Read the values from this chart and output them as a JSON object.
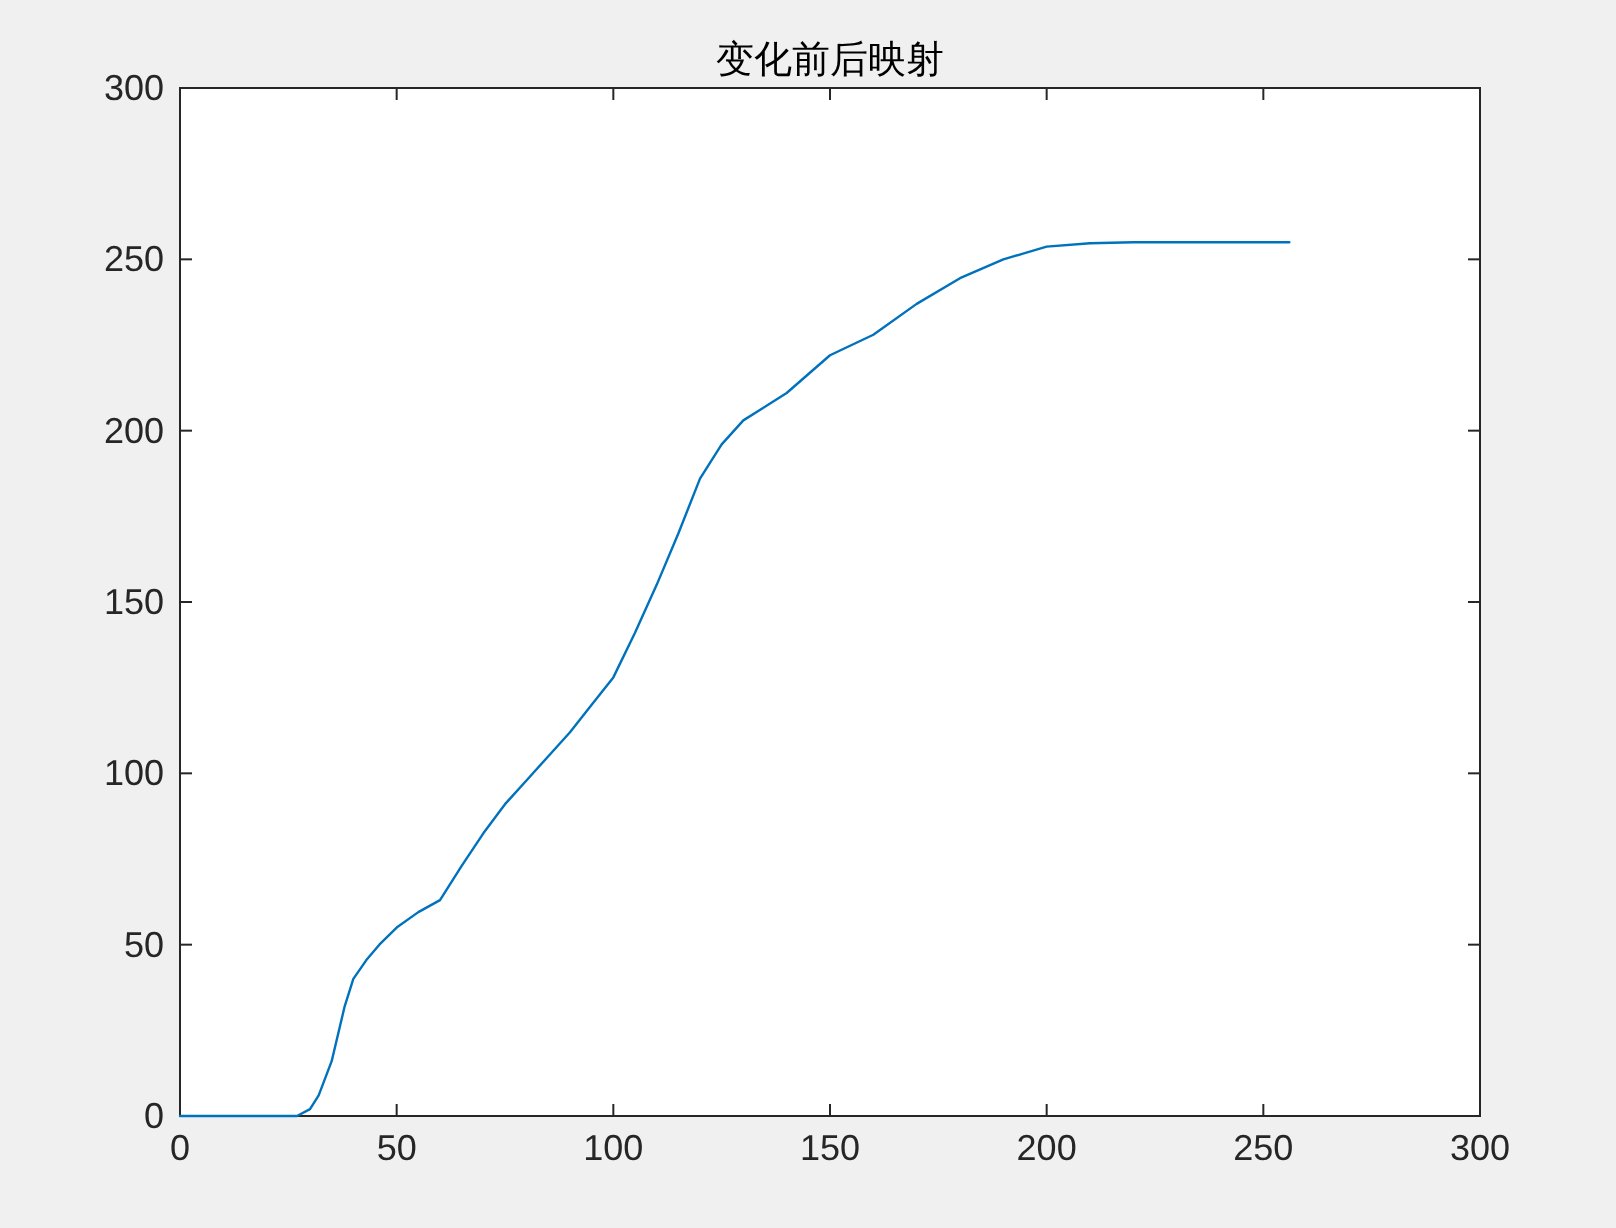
{
  "chart_data": {
    "type": "line",
    "title": "变化前后映射",
    "x": [
      0,
      25,
      27,
      30,
      32,
      35,
      38,
      40,
      43,
      46,
      50,
      55,
      60,
      65,
      70,
      75,
      80,
      85,
      90,
      95,
      100,
      105,
      110,
      115,
      120,
      125,
      130,
      140,
      150,
      160,
      170,
      180,
      190,
      200,
      210,
      220,
      256
    ],
    "values": [
      0,
      0,
      0,
      2,
      6,
      16,
      32,
      40,
      45.5,
      50,
      55,
      59.5,
      63,
      73,
      82.5,
      91,
      98,
      105,
      112,
      120,
      128,
      141,
      155,
      170,
      186,
      196,
      203,
      211,
      222,
      228,
      237,
      244.5,
      250,
      253.7,
      254.7,
      255,
      255
    ],
    "color": "#0072bd",
    "xlim": [
      0,
      300
    ],
    "ylim": [
      0,
      300
    ],
    "xticks": [
      0,
      50,
      100,
      150,
      200,
      250,
      300
    ],
    "yticks": [
      0,
      50,
      100,
      150,
      200,
      250,
      300
    ],
    "grid": false,
    "marker": "none",
    "line_style": "solid"
  }
}
